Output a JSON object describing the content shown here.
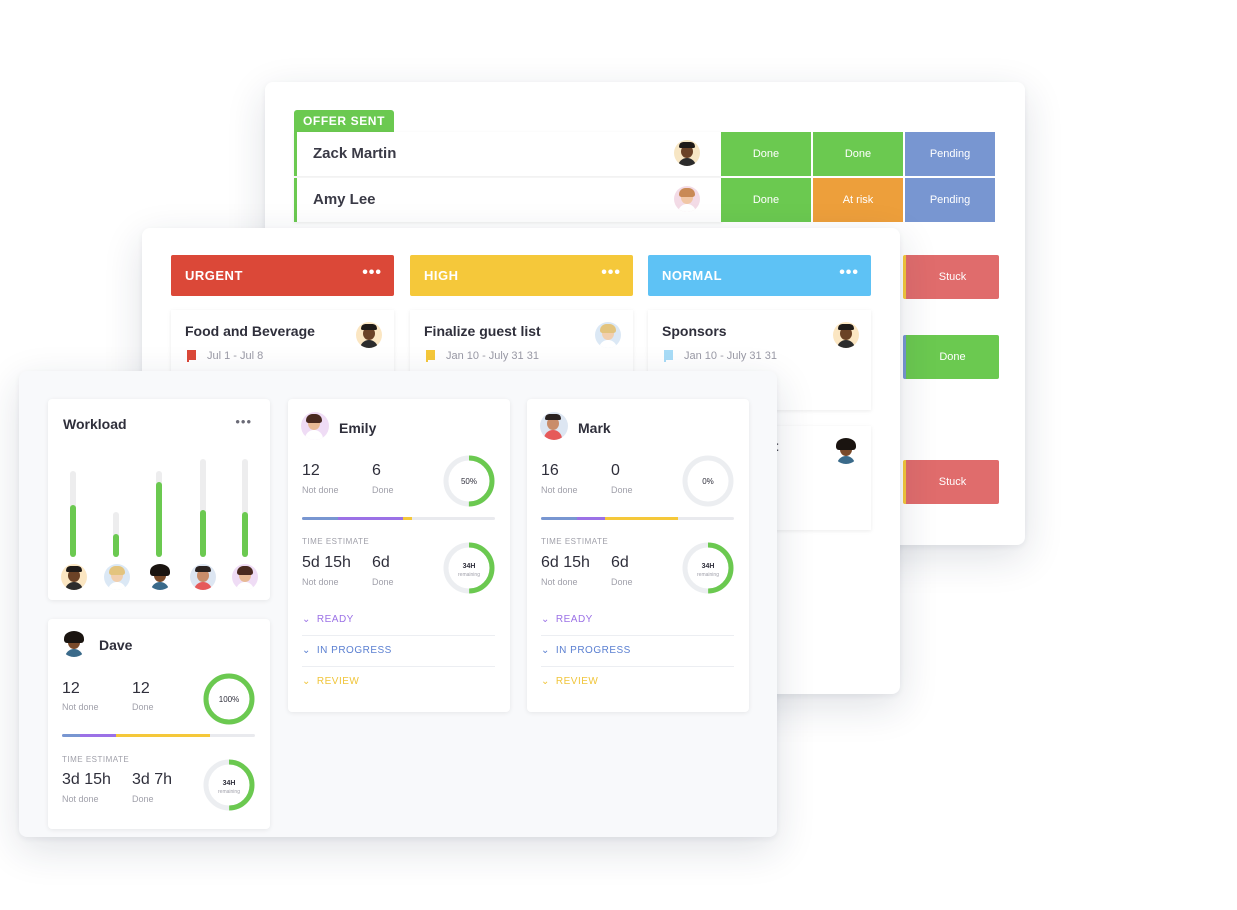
{
  "colors": {
    "green": "#6bc950",
    "orange": "#ed9f3b",
    "blue": "#7896d1",
    "red": "#db4838",
    "yellow": "#f5c83a",
    "sky": "#5ec2f5",
    "stuck": "#e06c6c",
    "purple": "#9b71e6"
  },
  "offer": {
    "tag": "OFFER SENT",
    "rows": [
      {
        "name": "Zack Martin",
        "statuses": [
          "Done",
          "Done",
          "Pending"
        ]
      },
      {
        "name": "Amy Lee",
        "statuses": [
          "Done",
          "At risk",
          "Pending"
        ]
      }
    ],
    "side_statuses": [
      "Stuck",
      "Done",
      "Stuck"
    ]
  },
  "priorities": [
    {
      "label": "URGENT",
      "dots": "•••",
      "task": "Food and Beverage",
      "date": "Jul 1 - Jul 8"
    },
    {
      "label": "HIGH",
      "dots": "•••",
      "task": "Finalize guest list",
      "date": "Jan 10 - July 31 31"
    },
    {
      "label": "NORMAL",
      "dots": "•••",
      "task": "Sponsors",
      "date": "Jan 10 - July 31 31"
    }
  ],
  "mid_partial_text": "st",
  "workload": {
    "title": "Workload",
    "dots": "•••",
    "levels": [
      0.6,
      0.27,
      0.87,
      0.55,
      0.52
    ]
  },
  "people": [
    {
      "name": "Emily",
      "not_done": "12",
      "done": "6",
      "not_done_label": "Not done",
      "done_label": "Done",
      "percent": "50%",
      "progress": 0.5,
      "time_label": "TIME ESTIMATE",
      "time_not_done": "5d 15h",
      "time_done": "6d",
      "hours": "34H",
      "hours_sub": "remaining",
      "statuses": [
        "READY",
        "IN PROGRESS",
        "REVIEW"
      ]
    },
    {
      "name": "Mark",
      "not_done": "16",
      "done": "0",
      "not_done_label": "Not done",
      "done_label": "Done",
      "percent": "0%",
      "progress": 0,
      "time_label": "TIME ESTIMATE",
      "time_not_done": "6d 15h",
      "time_done": "6d",
      "hours": "34H",
      "hours_sub": "remaining",
      "statuses": [
        "READY",
        "IN PROGRESS",
        "REVIEW"
      ]
    }
  ],
  "dave": {
    "name": "Dave",
    "not_done": "12",
    "done": "12",
    "not_done_label": "Not done",
    "done_label": "Done",
    "percent": "100%",
    "progress": 1,
    "time_label": "TIME ESTIMATE",
    "time_not_done": "3d 15h",
    "time_done": "3d 7h",
    "hours": "34H",
    "hours_sub": "remaining"
  }
}
